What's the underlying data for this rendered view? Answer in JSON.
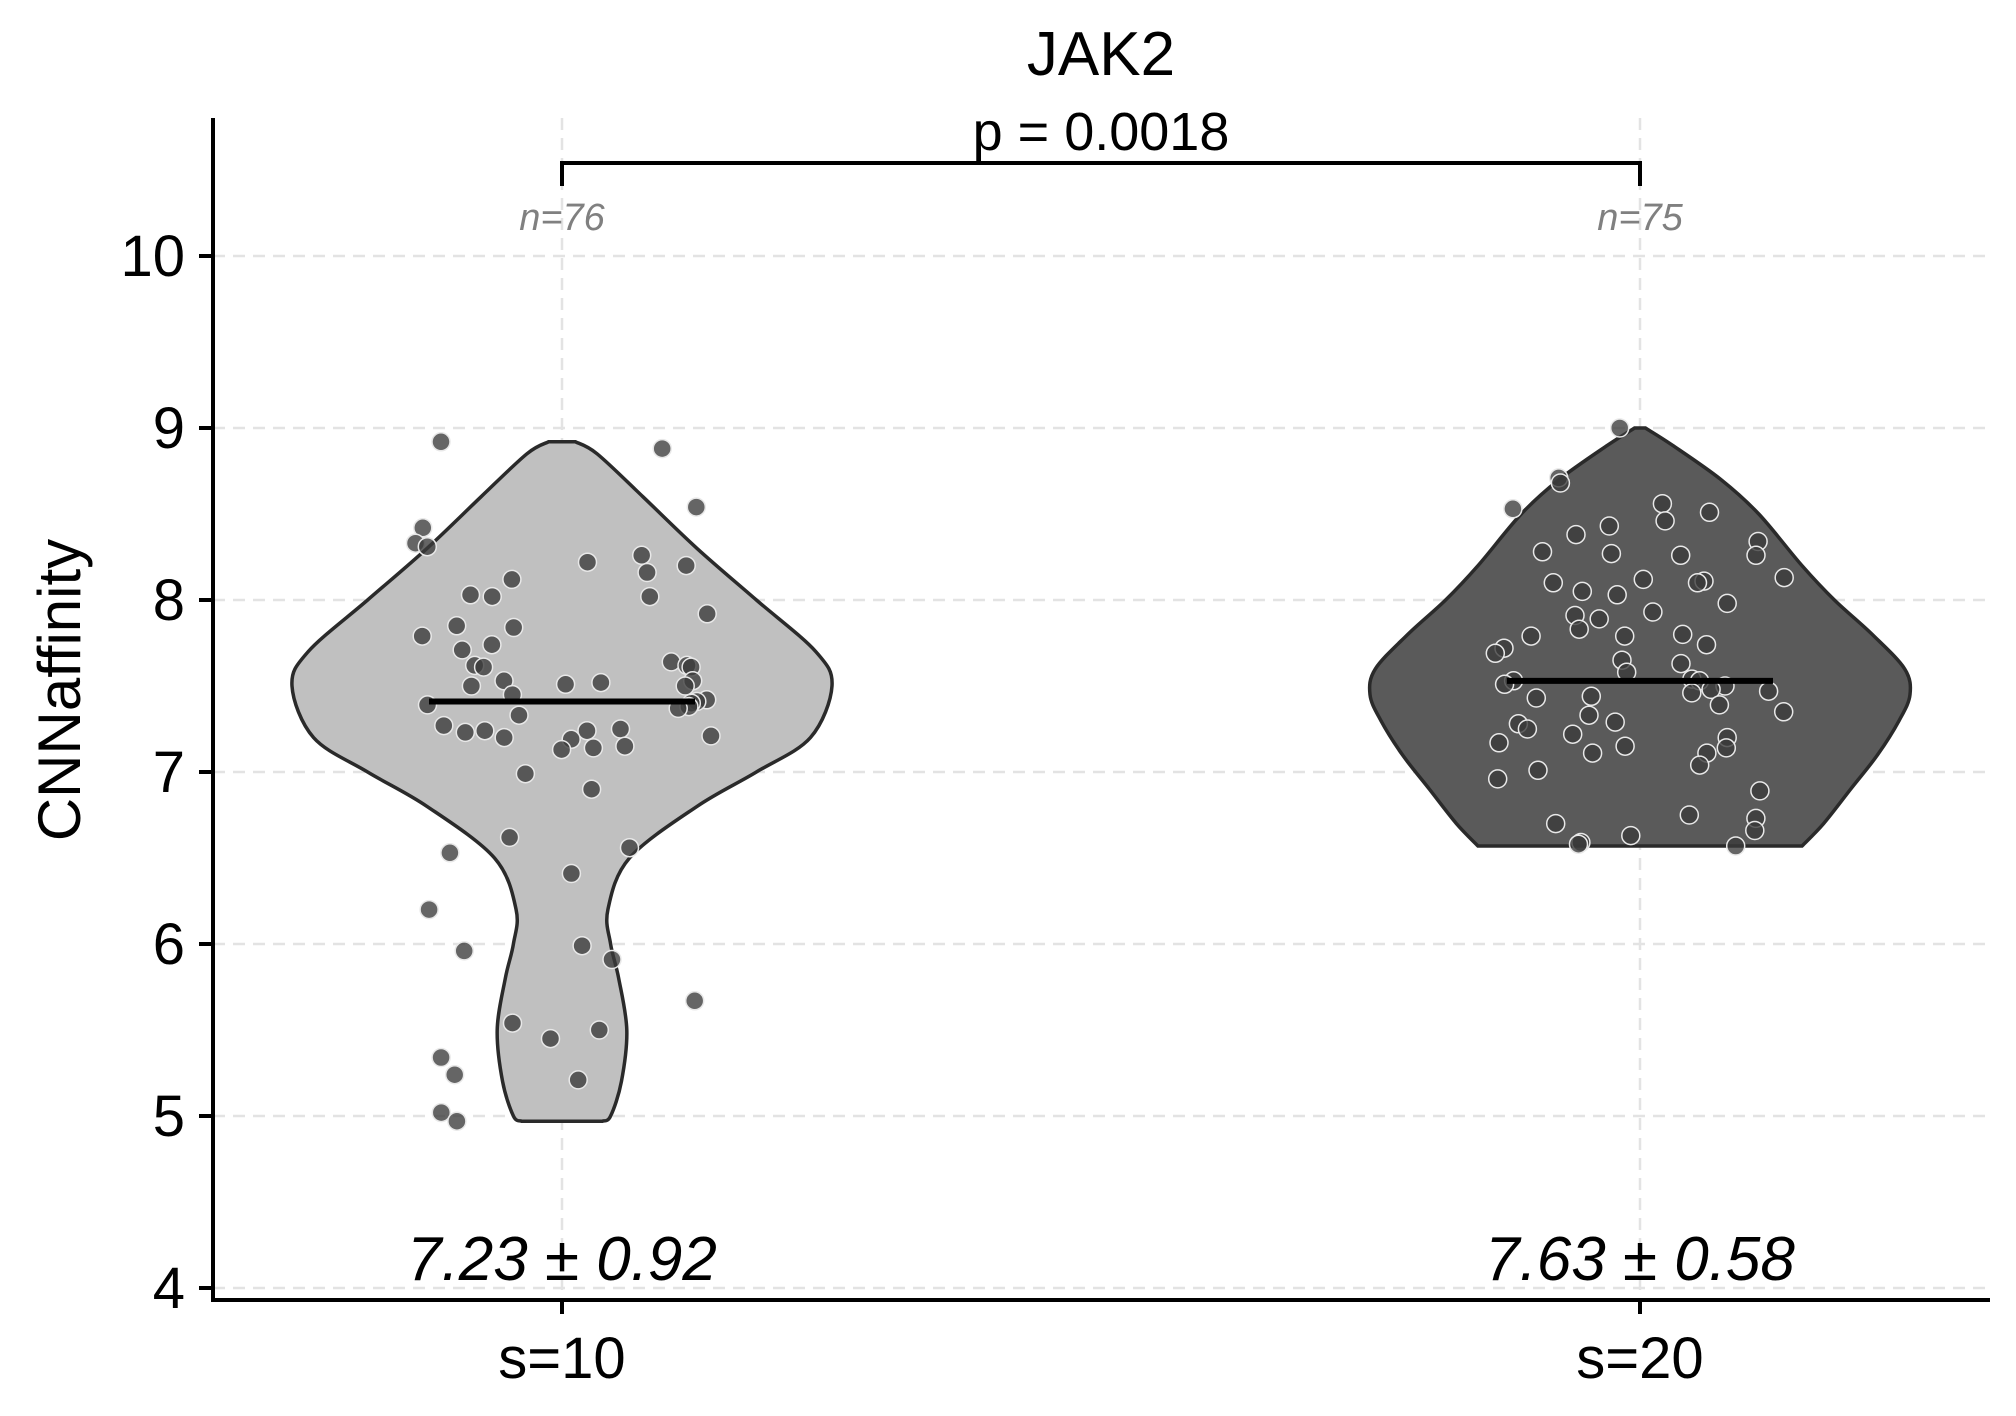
{
  "chart_data": {
    "type": "violin",
    "title": "JAK2",
    "ylabel": "CNNaffinity",
    "xlabel": "",
    "ylim": [
      3.93,
      10.8
    ],
    "yticks": [
      4,
      5,
      6,
      7,
      8,
      9,
      10
    ],
    "grid": true,
    "categories": [
      "s=10",
      "s=20"
    ],
    "significance": {
      "label": "p = 0.0018",
      "between": [
        0,
        1
      ]
    },
    "groups": [
      {
        "category": "s=10",
        "n_label": "n=76",
        "stat_label": "7.23 ± 0.92",
        "median": 7.41,
        "fill_color": "#c0c0c0",
        "density_profile": [
          [
            4.97,
            0.15
          ],
          [
            5.0,
            0.18
          ],
          [
            5.2,
            0.22
          ],
          [
            5.5,
            0.24
          ],
          [
            5.8,
            0.21
          ],
          [
            6.0,
            0.18
          ],
          [
            6.2,
            0.17
          ],
          [
            6.5,
            0.25
          ],
          [
            6.8,
            0.5
          ],
          [
            7.0,
            0.72
          ],
          [
            7.2,
            0.92
          ],
          [
            7.5,
            1.0
          ],
          [
            7.7,
            0.94
          ],
          [
            8.0,
            0.72
          ],
          [
            8.3,
            0.5
          ],
          [
            8.6,
            0.3
          ],
          [
            8.85,
            0.13
          ],
          [
            8.92,
            0.05
          ]
        ],
        "points": [
          8.92,
          8.88,
          8.54,
          8.42,
          8.33,
          8.31,
          8.26,
          8.22,
          8.2,
          8.16,
          8.12,
          8.03,
          8.02,
          8.02,
          7.92,
          7.85,
          7.84,
          7.79,
          7.74,
          7.71,
          7.64,
          7.62,
          7.62,
          7.61,
          7.61,
          7.53,
          7.53,
          7.52,
          7.51,
          7.5,
          7.5,
          7.45,
          7.42,
          7.41,
          7.4,
          7.39,
          7.38,
          7.37,
          7.33,
          7.27,
          7.25,
          7.24,
          7.24,
          7.23,
          7.21,
          7.2,
          7.19,
          7.15,
          7.14,
          7.13,
          6.99,
          6.9,
          6.62,
          6.56,
          6.53,
          6.41,
          6.2,
          5.99,
          5.96,
          5.91,
          5.67,
          5.54,
          5.5,
          5.45,
          5.34,
          5.24,
          5.21,
          5.02,
          4.97
        ]
      },
      {
        "category": "s=20",
        "n_label": "n=75",
        "stat_label": "7.63 ± 0.58",
        "median": 7.53,
        "fill_color": "#5a5a5a",
        "density_profile": [
          [
            6.57,
            0.6
          ],
          [
            6.7,
            0.68
          ],
          [
            6.9,
            0.78
          ],
          [
            7.1,
            0.88
          ],
          [
            7.3,
            0.96
          ],
          [
            7.45,
            1.0
          ],
          [
            7.6,
            0.98
          ],
          [
            7.8,
            0.86
          ],
          [
            8.0,
            0.72
          ],
          [
            8.2,
            0.6
          ],
          [
            8.5,
            0.44
          ],
          [
            8.7,
            0.3
          ],
          [
            8.9,
            0.12
          ],
          [
            9.0,
            0.02
          ]
        ],
        "points": [
          9.0,
          8.71,
          8.68,
          8.56,
          8.53,
          8.51,
          8.46,
          8.43,
          8.38,
          8.34,
          8.28,
          8.27,
          8.26,
          8.26,
          8.13,
          8.12,
          8.11,
          8.1,
          8.1,
          8.05,
          8.03,
          7.98,
          7.93,
          7.91,
          7.89,
          7.83,
          7.8,
          7.79,
          7.79,
          7.74,
          7.72,
          7.69,
          7.65,
          7.63,
          7.58,
          7.54,
          7.53,
          7.53,
          7.51,
          7.5,
          7.48,
          7.47,
          7.46,
          7.44,
          7.43,
          7.39,
          7.35,
          7.33,
          7.29,
          7.28,
          7.25,
          7.22,
          7.2,
          7.17,
          7.15,
          7.14,
          7.11,
          7.11,
          7.04,
          7.01,
          6.96,
          6.89,
          6.75,
          6.73,
          6.7,
          6.66,
          6.63,
          6.59,
          6.58,
          6.57
        ]
      }
    ]
  }
}
